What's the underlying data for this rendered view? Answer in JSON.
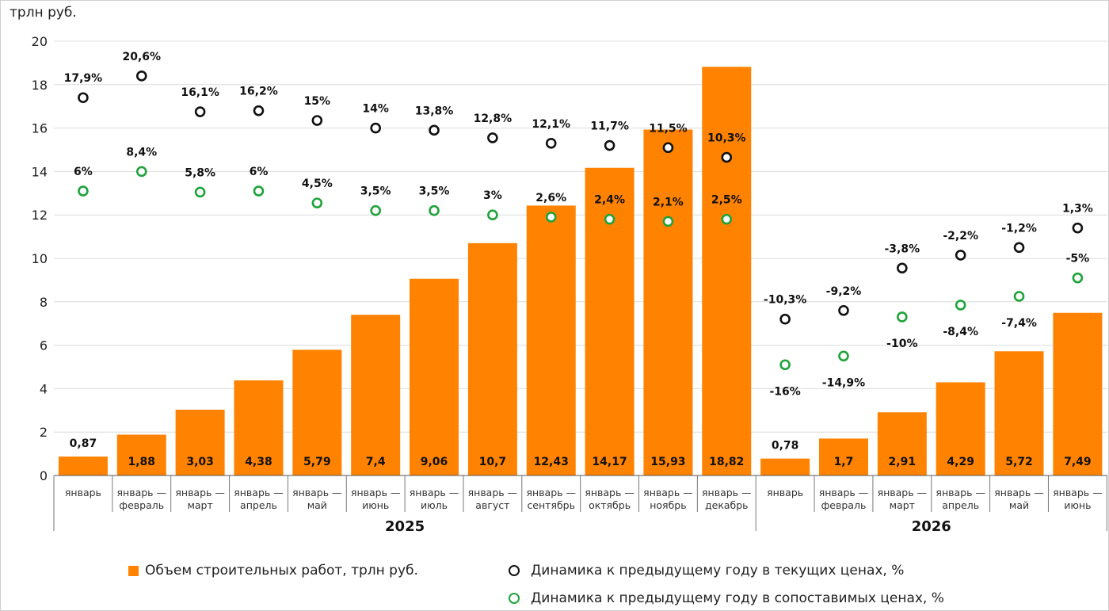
{
  "chart_data": {
    "type": "bar",
    "ylabel": "трлн руб.",
    "ylim": [
      0,
      20
    ],
    "yticks": [
      0,
      2,
      4,
      6,
      8,
      10,
      12,
      14,
      16,
      18,
      20
    ],
    "grid": true,
    "groups": [
      {
        "name": "2025",
        "categories": [
          "январь",
          "январь — февраль",
          "январь — март",
          "январь — апрель",
          "январь — май",
          "январь — июнь",
          "январь — июль",
          "январь — август",
          "январь — сентябрь",
          "январь — октябрь",
          "январь — ноябрь",
          "январь — декабрь"
        ]
      },
      {
        "name": "2026",
        "categories": [
          "январь",
          "январь — февраль",
          "январь — март",
          "январь — апрель",
          "январь — май",
          "январь — июнь"
        ]
      }
    ],
    "series": [
      {
        "name": "Объем строительных работ, трлн руб.",
        "type": "bar",
        "color": "#ff8200",
        "values": [
          0.87,
          1.88,
          3.03,
          4.38,
          5.79,
          7.4,
          9.06,
          10.7,
          12.43,
          14.17,
          15.93,
          18.82,
          0.78,
          1.7,
          2.91,
          4.29,
          5.72,
          7.49
        ],
        "labels": [
          "0,87",
          "1,88",
          "3,03",
          "4,38",
          "5,79",
          "7,4",
          "9,06",
          "10,7",
          "12,43",
          "14,17",
          "15,93",
          "18,82",
          "0,78",
          "1,7",
          "2,91",
          "4,29",
          "5,72",
          "7,49"
        ]
      },
      {
        "name": "Динамика к предыдущему году в текущих ценах, %",
        "type": "scatter",
        "color": "#111111",
        "values": [
          17.4,
          18.4,
          16.75,
          16.8,
          16.35,
          16.0,
          15.9,
          15.55,
          15.3,
          15.2,
          15.1,
          14.65,
          7.2,
          7.6,
          9.55,
          10.15,
          10.5,
          11.4
        ],
        "labels": [
          "17,9%",
          "20,6%",
          "16,1%",
          "16,2%",
          "15%",
          "14%",
          "13,8%",
          "12,8%",
          "12,1%",
          "11,7%",
          "11,5%",
          "10,3%",
          "-10,3%",
          "-9,2%",
          "-3,8%",
          "-2,2%",
          "-1,2%",
          "1,3%"
        ]
      },
      {
        "name": "Динамика к предыдущему году в сопоставимых ценах, %",
        "type": "scatter",
        "color": "#1fa33a",
        "values": [
          13.1,
          14.0,
          13.05,
          13.1,
          12.55,
          12.2,
          12.2,
          12.0,
          11.9,
          11.8,
          11.7,
          11.8,
          5.1,
          5.5,
          7.3,
          7.85,
          8.25,
          9.1
        ],
        "labels": [
          "6%",
          "8,4%",
          "5,8%",
          "6%",
          "4,5%",
          "3,5%",
          "3,5%",
          "3%",
          "2,6%",
          "2,4%",
          "2,1%",
          "2,5%",
          "-16%",
          "-14,9%",
          "-10%",
          "-8,4%",
          "-7,4%",
          "-5%"
        ]
      }
    ],
    "legend_position": "bottom"
  }
}
